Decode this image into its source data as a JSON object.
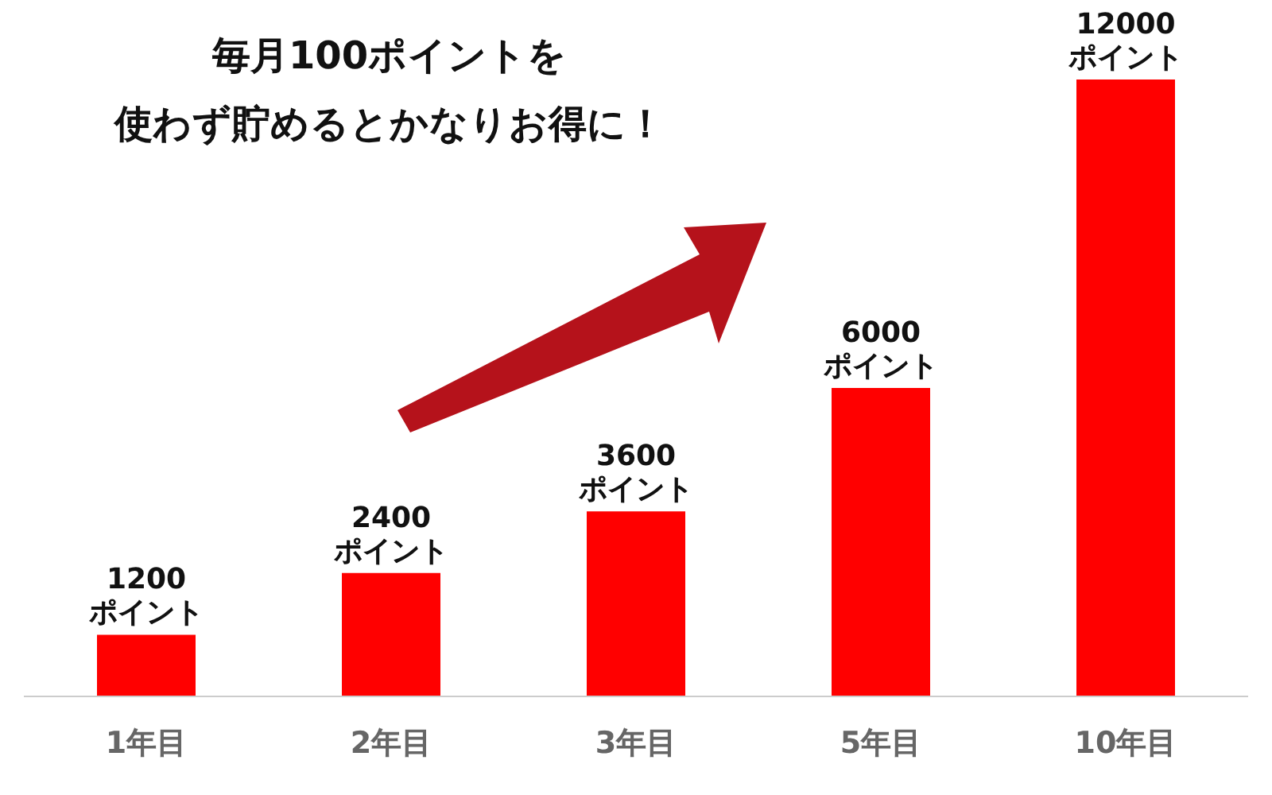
{
  "chart_data": {
    "type": "bar",
    "title": "毎月100ポイントを使わず貯めるとかなりお得に！",
    "categories": [
      "1年目",
      "2年目",
      "3年目",
      "5年目",
      "10年目"
    ],
    "values": [
      1200,
      2400,
      3600,
      6000,
      12000
    ],
    "color": "#ff0000",
    "value_labels": [
      "1200\nポイント",
      "2400\nポイント",
      "3600\nポイント",
      "6000\nポイント",
      "12000\nポイント"
    ],
    "grid": false,
    "legend": false
  }
}
